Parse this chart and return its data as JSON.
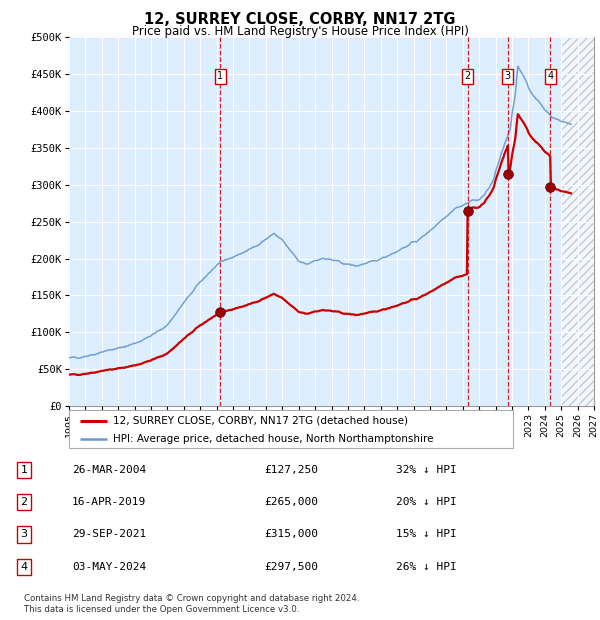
{
  "title": "12, SURREY CLOSE, CORBY, NN17 2TG",
  "subtitle": "Price paid vs. HM Land Registry's House Price Index (HPI)",
  "xlim": [
    1995,
    2027
  ],
  "ylim": [
    0,
    500000
  ],
  "yticks": [
    0,
    50000,
    100000,
    150000,
    200000,
    250000,
    300000,
    350000,
    400000,
    450000,
    500000
  ],
  "ytick_labels": [
    "£0",
    "£50K",
    "£100K",
    "£150K",
    "£200K",
    "£250K",
    "£300K",
    "£350K",
    "£400K",
    "£450K",
    "£500K"
  ],
  "xticks": [
    1995,
    1996,
    1997,
    1998,
    1999,
    2000,
    2001,
    2002,
    2003,
    2004,
    2005,
    2006,
    2007,
    2008,
    2009,
    2010,
    2011,
    2012,
    2013,
    2014,
    2015,
    2016,
    2017,
    2018,
    2019,
    2020,
    2021,
    2022,
    2023,
    2024,
    2025,
    2026,
    2027
  ],
  "bg_color": "#ddeeff",
  "chart_bg": "#ddeeff",
  "hatch_start": 2025.0,
  "transactions": [
    {
      "num": 1,
      "date": "26-MAR-2004",
      "price": 127250,
      "pct": "32%",
      "x": 2004.23
    },
    {
      "num": 2,
      "date": "16-APR-2019",
      "price": 265000,
      "pct": "20%",
      "x": 2019.29
    },
    {
      "num": 3,
      "date": "29-SEP-2021",
      "price": 315000,
      "pct": "15%",
      "x": 2021.75
    },
    {
      "num": 4,
      "date": "03-MAY-2024",
      "price": 297500,
      "pct": "26%",
      "x": 2024.34
    }
  ],
  "legend_line1": "12, SURREY CLOSE, CORBY, NN17 2TG (detached house)",
  "legend_line2": "HPI: Average price, detached house, North Northamptonshire",
  "footer1": "Contains HM Land Registry data © Crown copyright and database right 2024.",
  "footer2": "This data is licensed under the Open Government Licence v3.0.",
  "red_color": "#cc0000",
  "blue_color": "#6699cc"
}
